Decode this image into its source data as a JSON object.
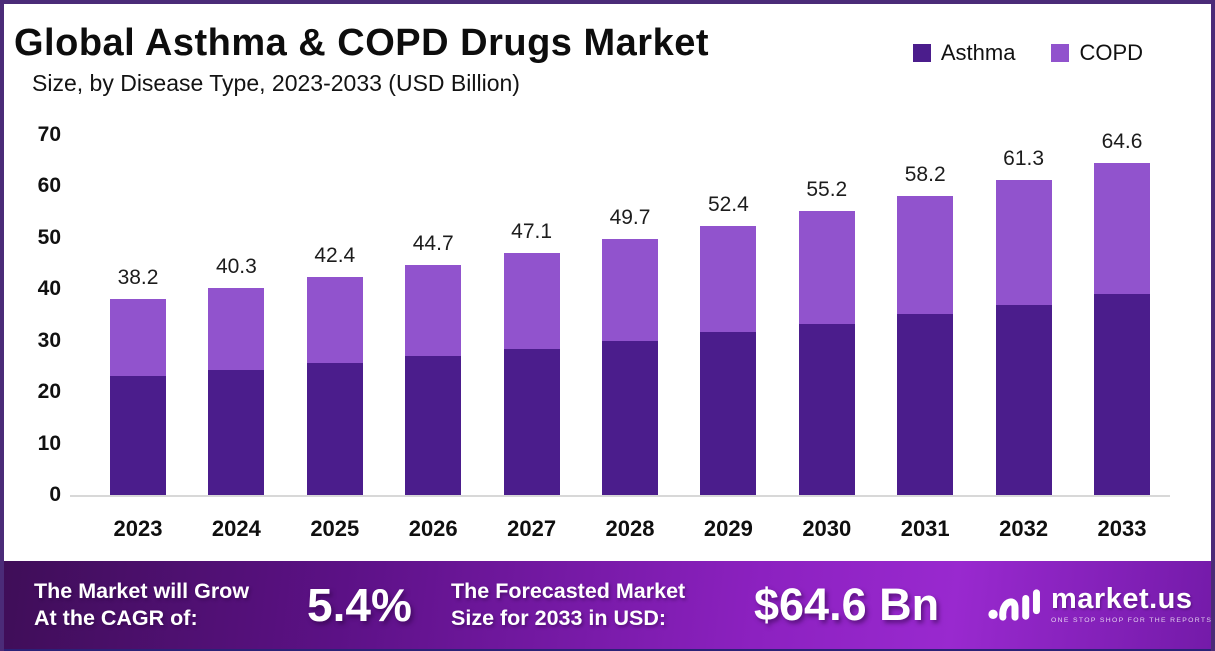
{
  "header": {
    "title": "Global Asthma & COPD Drugs Market",
    "subtitle": "Size, by Disease Type, 2023-2033 (USD Billion)"
  },
  "legend": [
    {
      "label": "Asthma",
      "color": "#4b1d8c"
    },
    {
      "label": "COPD",
      "color": "#9153cd"
    }
  ],
  "colors": {
    "asthma": "#4b1d8c",
    "copd": "#9153cd",
    "frame_border": "#4b2b78",
    "banner_bottom_border": "#2b2178",
    "axis_line": "#d8d8d8"
  },
  "chart_data": {
    "type": "bar",
    "stacked": true,
    "title": "Global Asthma & COPD Drugs Market Size, by Disease Type, 2023-2033 (USD Billion)",
    "categories": [
      "2023",
      "2024",
      "2025",
      "2026",
      "2027",
      "2028",
      "2029",
      "2030",
      "2031",
      "2032",
      "2033"
    ],
    "series": [
      {
        "name": "Asthma",
        "color": "#4b1d8c",
        "values": [
          23.1,
          24.4,
          25.7,
          27.0,
          28.4,
          30.0,
          31.6,
          33.3,
          35.1,
          37.0,
          39.0
        ]
      },
      {
        "name": "COPD",
        "color": "#9153cd",
        "values": [
          15.1,
          15.9,
          16.7,
          17.7,
          18.7,
          19.7,
          20.8,
          21.9,
          23.1,
          24.3,
          25.6
        ]
      }
    ],
    "totals": [
      38.2,
      40.3,
      42.4,
      44.7,
      47.1,
      49.7,
      52.4,
      55.2,
      58.2,
      61.3,
      64.6
    ],
    "total_labels": [
      "38.2",
      "40.3",
      "42.4",
      "44.7",
      "47.1",
      "49.7",
      "52.4",
      "55.2",
      "58.2",
      "61.3",
      "64.6"
    ],
    "xlabel": "",
    "ylabel": "",
    "ylim": [
      0,
      70
    ],
    "yticks": [
      0,
      10,
      20,
      30,
      40,
      50,
      60,
      70
    ],
    "grid": false,
    "legend_position": "top-right"
  },
  "banner": {
    "cagr_label_line1": "The Market will Grow",
    "cagr_label_line2": "At the CAGR of:",
    "cagr_value": "5.4%",
    "forecast_label_line1": "The Forecasted Market",
    "forecast_label_line2": "Size for 2033 in USD:",
    "forecast_value": "$64.6 Bn",
    "logo_text": "market.us",
    "logo_tagline": "ONE STOP SHOP FOR THE REPORTS"
  }
}
